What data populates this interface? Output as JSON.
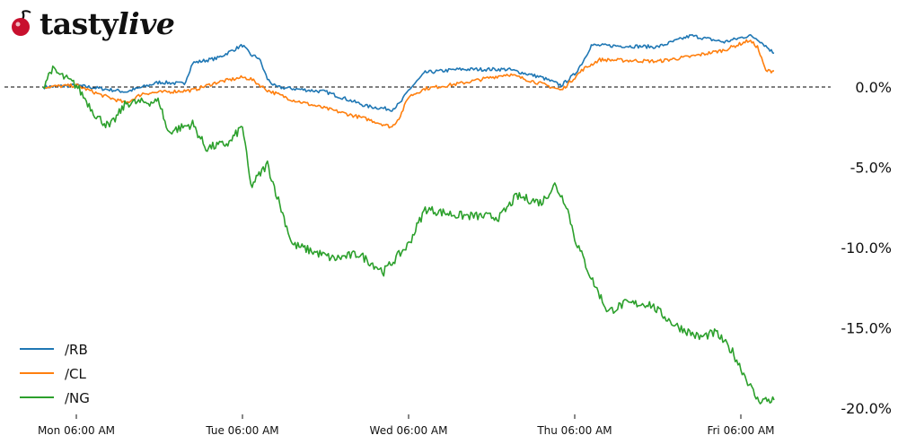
{
  "brand": {
    "logo_text": "tastylive",
    "logo_prefix": "tasty",
    "logo_suffix": "live",
    "logo_icon": "cherry-icon",
    "logo_color": "#c8102e"
  },
  "chart_data": {
    "type": "line",
    "title": "",
    "xlabel": "",
    "ylabel": "",
    "y_axis_position": "right",
    "y_unit": "%",
    "ylim": [
      -20.0,
      2.0
    ],
    "yticks": [
      0.0,
      -5.0,
      -10.0,
      -15.0,
      -20.0
    ],
    "ytick_labels": [
      "0.0%",
      "-5.0%",
      "-10.0%",
      "-15.0%",
      "-20.0%"
    ],
    "xticks": [
      {
        "label": "Mon 06:00 AM",
        "day": 0
      },
      {
        "label": "Tue 06:00 AM",
        "day": 1
      },
      {
        "label": "Wed 06:00 AM",
        "day": 2
      },
      {
        "label": "Thu 06:00 AM",
        "day": 3
      },
      {
        "label": "Fri 06:00 AM",
        "day": 4
      }
    ],
    "reference_line": {
      "y": 0.0,
      "style": "dashed",
      "color": "#000000"
    },
    "grid": false,
    "legend_position": "bottom-left",
    "series": [
      {
        "name": "/RB",
        "color": "#1f77b4",
        "points": [
          [
            -0.2,
            0.0
          ],
          [
            0.0,
            0.1
          ],
          [
            0.3,
            -0.3
          ],
          [
            0.5,
            0.3
          ],
          [
            0.65,
            0.2
          ],
          [
            0.7,
            1.5
          ],
          [
            0.85,
            1.8
          ],
          [
            1.0,
            2.6
          ],
          [
            1.05,
            2.0
          ],
          [
            1.1,
            1.8
          ],
          [
            1.15,
            0.5
          ],
          [
            1.2,
            0.0
          ],
          [
            1.5,
            -0.3
          ],
          [
            1.75,
            -1.2
          ],
          [
            1.9,
            -1.4
          ],
          [
            1.95,
            -1.0
          ],
          [
            2.0,
            -0.2
          ],
          [
            2.1,
            0.9
          ],
          [
            2.3,
            1.1
          ],
          [
            2.6,
            1.1
          ],
          [
            2.8,
            0.6
          ],
          [
            2.92,
            0.1
          ],
          [
            3.0,
            0.8
          ],
          [
            3.05,
            1.6
          ],
          [
            3.1,
            2.6
          ],
          [
            3.5,
            2.5
          ],
          [
            3.7,
            3.2
          ],
          [
            3.9,
            2.8
          ],
          [
            4.05,
            3.2
          ],
          [
            4.1,
            3.0
          ],
          [
            4.2,
            2.1
          ]
        ]
      },
      {
        "name": "/CL",
        "color": "#ff7f0e",
        "points": [
          [
            -0.2,
            0.0
          ],
          [
            0.0,
            0.1
          ],
          [
            0.15,
            -0.5
          ],
          [
            0.3,
            -1.0
          ],
          [
            0.4,
            -0.4
          ],
          [
            0.7,
            -0.2
          ],
          [
            0.85,
            0.3
          ],
          [
            1.0,
            0.6
          ],
          [
            1.05,
            0.5
          ],
          [
            1.15,
            -0.2
          ],
          [
            1.3,
            -0.8
          ],
          [
            1.75,
            -2.0
          ],
          [
            1.9,
            -2.5
          ],
          [
            1.95,
            -1.8
          ],
          [
            2.0,
            -0.6
          ],
          [
            2.1,
            -0.1
          ],
          [
            2.3,
            0.2
          ],
          [
            2.6,
            0.8
          ],
          [
            2.8,
            0.2
          ],
          [
            2.92,
            -0.2
          ],
          [
            3.05,
            1.1
          ],
          [
            3.15,
            1.7
          ],
          [
            3.5,
            1.6
          ],
          [
            3.7,
            1.9
          ],
          [
            3.9,
            2.3
          ],
          [
            4.05,
            2.9
          ],
          [
            4.1,
            2.5
          ],
          [
            4.15,
            1.0
          ],
          [
            4.2,
            1.0
          ]
        ]
      },
      {
        "name": "/NG",
        "color": "#2ca02c",
        "points": [
          [
            -0.2,
            0.0
          ],
          [
            -0.15,
            1.1
          ],
          [
            0.0,
            0.1
          ],
          [
            0.12,
            -1.8
          ],
          [
            0.2,
            -2.5
          ],
          [
            0.3,
            -1.0
          ],
          [
            0.5,
            -0.9
          ],
          [
            0.55,
            -2.8
          ],
          [
            0.7,
            -2.3
          ],
          [
            0.78,
            -3.8
          ],
          [
            0.92,
            -3.5
          ],
          [
            1.0,
            -2.4
          ],
          [
            1.05,
            -6.2
          ],
          [
            1.15,
            -4.8
          ],
          [
            1.2,
            -6.5
          ],
          [
            1.3,
            -9.8
          ],
          [
            1.55,
            -10.7
          ],
          [
            1.7,
            -10.4
          ],
          [
            1.85,
            -11.5
          ],
          [
            2.0,
            -9.8
          ],
          [
            2.1,
            -7.6
          ],
          [
            2.3,
            -8.0
          ],
          [
            2.55,
            -8.1
          ],
          [
            2.65,
            -6.8
          ],
          [
            2.8,
            -7.2
          ],
          [
            2.88,
            -6.1
          ],
          [
            2.95,
            -7.3
          ],
          [
            3.0,
            -9.4
          ],
          [
            3.1,
            -11.9
          ],
          [
            3.2,
            -14.0
          ],
          [
            3.3,
            -13.5
          ],
          [
            3.45,
            -13.5
          ],
          [
            3.6,
            -14.8
          ],
          [
            3.75,
            -15.6
          ],
          [
            3.85,
            -15.3
          ],
          [
            3.95,
            -16.5
          ],
          [
            4.05,
            -18.5
          ],
          [
            4.1,
            -19.5
          ],
          [
            4.2,
            -19.5
          ]
        ]
      }
    ]
  }
}
